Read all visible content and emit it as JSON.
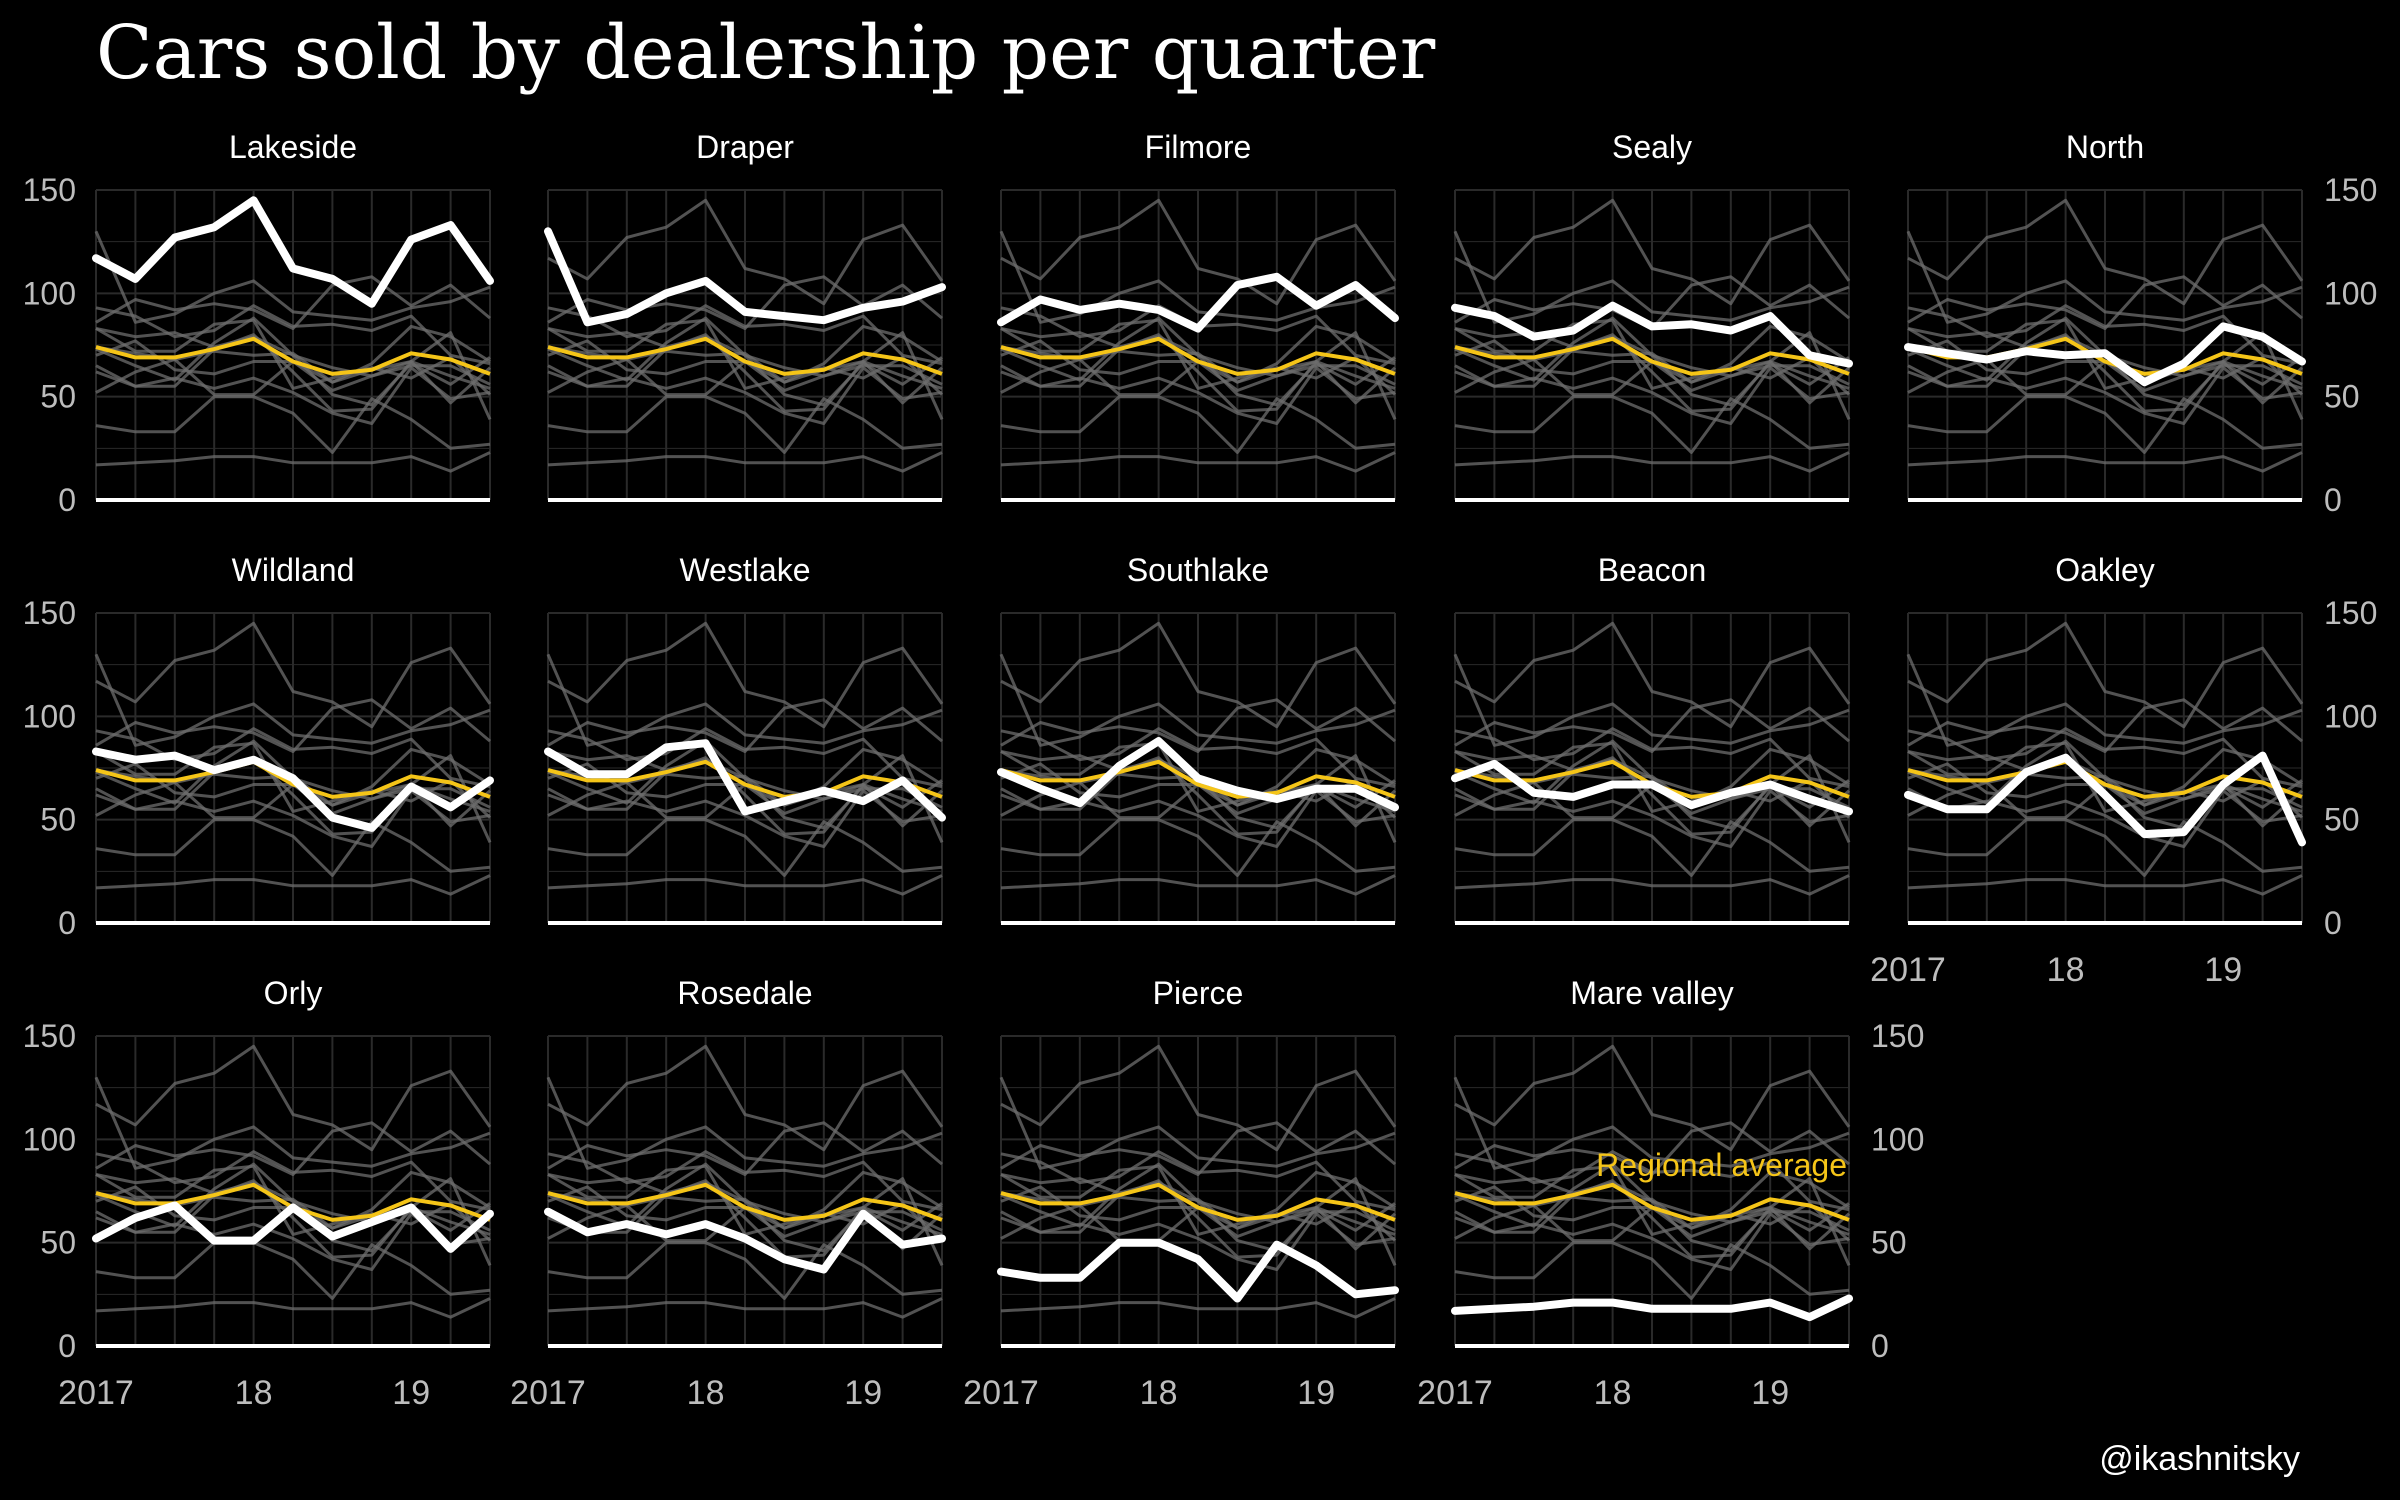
{
  "chart_data": {
    "type": "line",
    "title": "Cars sold by dealership per quarter",
    "caption": "@ikashnitsky",
    "xlabel": "",
    "ylabel": "",
    "ylim": [
      0,
      150
    ],
    "y_ticks": [
      0,
      50,
      100,
      150
    ],
    "x": [
      2017.0,
      2017.25,
      2017.5,
      2017.75,
      2018.0,
      2018.25,
      2018.5,
      2018.75,
      2019.0,
      2019.25,
      2019.5
    ],
    "x_ticks": [
      2017,
      2018,
      2019
    ],
    "x_tick_labels": [
      "2017",
      "18",
      "19"
    ],
    "grid": true,
    "colors": {
      "background": "#000000",
      "highlight": "#ffffff",
      "average": "#f5c518",
      "others": "#6e6e6e",
      "grid": "#2a2a2a",
      "tick_text": "#bdbdbd"
    },
    "annotation": {
      "text": "Regional average",
      "color": "#f5c518"
    },
    "average": {
      "name": "Regional average",
      "values": [
        74,
        69,
        69,
        73,
        78,
        67,
        61,
        63,
        71,
        68,
        61
      ]
    },
    "series": [
      {
        "name": "Lakeside",
        "values": [
          117,
          107,
          127,
          132,
          145,
          112,
          107,
          95,
          126,
          133,
          106
        ]
      },
      {
        "name": "Draper",
        "values": [
          130,
          86,
          90,
          100,
          106,
          91,
          89,
          87,
          93,
          96,
          103
        ]
      },
      {
        "name": "Filmore",
        "values": [
          86,
          97,
          92,
          95,
          92,
          83,
          104,
          108,
          94,
          104,
          88
        ]
      },
      {
        "name": "Sealy",
        "values": [
          93,
          89,
          79,
          82,
          94,
          84,
          85,
          82,
          89,
          70,
          66
        ]
      },
      {
        "name": "North",
        "values": [
          74,
          71,
          68,
          72,
          70,
          71,
          57,
          66,
          84,
          79,
          67
        ]
      },
      {
        "name": "Wildland",
        "values": [
          83,
          79,
          81,
          74,
          79,
          70,
          51,
          46,
          66,
          56,
          69
        ]
      },
      {
        "name": "Westlake",
        "values": [
          83,
          72,
          72,
          85,
          87,
          54,
          59,
          64,
          59,
          69,
          51
        ]
      },
      {
        "name": "Southlake",
        "values": [
          73,
          65,
          58,
          76,
          88,
          70,
          64,
          60,
          65,
          65,
          56
        ]
      },
      {
        "name": "Beacon",
        "values": [
          70,
          77,
          63,
          61,
          67,
          67,
          57,
          63,
          67,
          60,
          54
        ]
      },
      {
        "name": "Oakley",
        "values": [
          62,
          55,
          55,
          73,
          80,
          62,
          43,
          44,
          67,
          81,
          39
        ]
      },
      {
        "name": "Orly",
        "values": [
          52,
          62,
          68,
          51,
          51,
          67,
          53,
          60,
          67,
          47,
          64
        ]
      },
      {
        "name": "Rosedale",
        "values": [
          65,
          55,
          59,
          54,
          59,
          52,
          42,
          37,
          64,
          49,
          52
        ]
      },
      {
        "name": "Pierce",
        "values": [
          36,
          33,
          33,
          50,
          50,
          42,
          23,
          49,
          39,
          25,
          27
        ]
      },
      {
        "name": "Mare valley",
        "values": [
          17,
          18,
          19,
          21,
          21,
          18,
          18,
          18,
          21,
          14,
          23
        ]
      }
    ]
  }
}
